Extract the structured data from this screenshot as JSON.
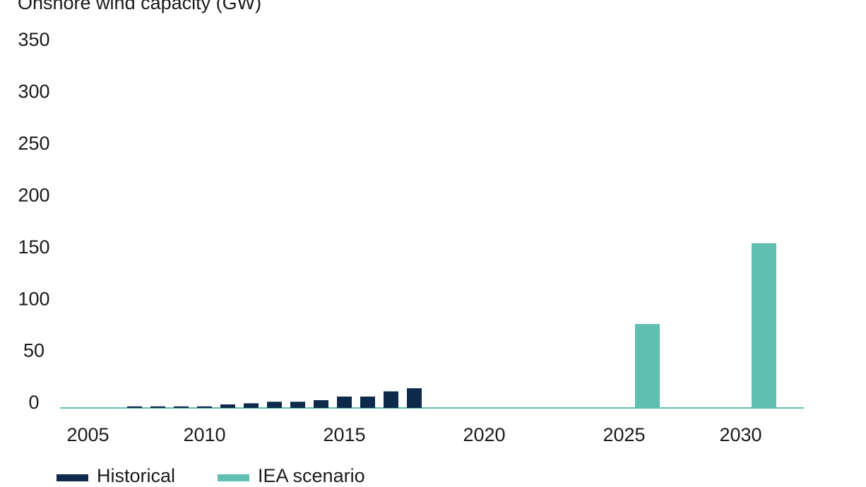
{
  "chart_data": {
    "type": "bar",
    "title": "Onshore wind capacity (GW)",
    "categories": [
      null,
      null,
      "2005",
      null,
      null,
      null,
      null,
      "2010",
      null,
      null,
      null,
      null,
      null,
      "2015",
      null,
      null,
      null,
      null,
      null,
      "2020",
      null,
      null,
      null,
      null,
      null,
      "2025",
      null,
      null,
      null,
      null,
      "2030"
    ],
    "series": [
      {
        "name": "Historical",
        "color": "#0e2a4a",
        "values": [
          null,
          null,
          null,
          1.5,
          1.5,
          1.5,
          1.5,
          3.4,
          4.5,
          6,
          6,
          7.5,
          11,
          11,
          16,
          19,
          null,
          null,
          null,
          null,
          null,
          null,
          null,
          null,
          null,
          null,
          null,
          null,
          null,
          null,
          null
        ]
      },
      {
        "name": "IEA scenario",
        "color": "#5fbfb0",
        "values": [
          null,
          null,
          null,
          null,
          null,
          null,
          null,
          null,
          null,
          null,
          null,
          null,
          null,
          null,
          null,
          null,
          null,
          null,
          null,
          null,
          null,
          null,
          null,
          null,
          null,
          81,
          null,
          null,
          null,
          null,
          159
        ]
      }
    ],
    "ylim": [
      0,
      350
    ],
    "yticks": [
      0,
      50,
      100,
      150,
      200,
      250,
      300,
      350
    ],
    "grid": false
  }
}
